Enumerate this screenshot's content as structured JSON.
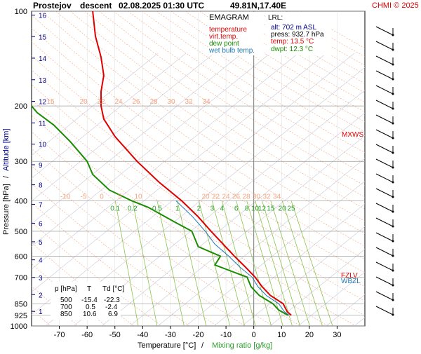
{
  "header": {
    "station": "Prostejov",
    "mode": "descent",
    "datetime": "02.08.2025 01:30 UTC",
    "coords": "49.81N,17.40E",
    "copyright": "CHMI © 2025"
  },
  "legend": {
    "title": "EMAGRAM",
    "items": [
      {
        "label": "temperature",
        "color": "#e00000"
      },
      {
        "label": "virt.temp.",
        "color": "#e00000"
      },
      {
        "label": "dew point",
        "color": "#1a8c00"
      },
      {
        "label": "wet bulb temp.",
        "color": "#1f77b4"
      }
    ]
  },
  "lrl": {
    "title": "LRL:",
    "alt": "alt: 702 m ASL",
    "press": "press: 932.7 hPa",
    "temp": "temp: 13.5 °C",
    "dwpt": "dwpt: 12.3 °C"
  },
  "table": {
    "headers": [
      "p [hPa]",
      "T",
      "Td [°C]"
    ],
    "rows": [
      [
        "500",
        "-15.4",
        "-22.3"
      ],
      [
        "700",
        "0.5",
        "-2.4"
      ],
      [
        "850",
        "10.6",
        "6.9"
      ]
    ]
  },
  "levels": {
    "mxws": "MXWS",
    "fzlv": "FZLV",
    "wbzl": "WBZL"
  },
  "axes": {
    "ylabel_pressure": "Pressure [hPa]",
    "ylabel_sep": "/",
    "ylabel_altitude": "Altitude [km]",
    "xlabel_temp": "Temperature [°C]",
    "xlabel_sep": "/",
    "xlabel_mr": "Mixing ratio [g/kg]",
    "pressure_ticks": [
      100,
      200,
      300,
      400,
      500,
      600,
      700,
      850,
      925,
      1000
    ],
    "temp_ticks": [
      -70,
      -60,
      -50,
      -40,
      -30,
      -20,
      -10,
      0,
      10,
      20,
      30
    ],
    "altitude_ticks": [
      1,
      2,
      3,
      4,
      5,
      6,
      7,
      8,
      9,
      10,
      11,
      12,
      13,
      14,
      15,
      16
    ],
    "mixing_ratio_labels": [
      "0.1",
      "0.2",
      "0.5",
      "1",
      "2",
      "3",
      "4",
      "6",
      "8",
      "10",
      "12",
      "15",
      "20",
      "25"
    ],
    "theta_labels_upper": [
      "15",
      "20",
      "22",
      "24",
      "26",
      "28",
      "30",
      "32",
      "34"
    ],
    "theta_labels_lower": [
      "-10",
      "-5",
      "0",
      "5",
      "10",
      "20",
      "22",
      "24",
      "26",
      "28",
      "30",
      "32",
      "34"
    ]
  },
  "chart_data": {
    "type": "line",
    "title": "",
    "xlim": [
      -80,
      40
    ],
    "ylim": [
      100,
      1000
    ],
    "y_scale": "log",
    "series": [
      {
        "name": "temperature",
        "color": "#e00000",
        "points": [
          [
            13.5,
            925
          ],
          [
            12,
            900
          ],
          [
            10.6,
            850
          ],
          [
            6,
            800
          ],
          [
            3,
            750
          ],
          [
            0.5,
            700
          ],
          [
            -3,
            650
          ],
          [
            -7,
            600
          ],
          [
            -11,
            550
          ],
          [
            -15.4,
            500
          ],
          [
            -20,
            450
          ],
          [
            -26,
            400
          ],
          [
            -34,
            350
          ],
          [
            -42,
            300
          ],
          [
            -50,
            250
          ],
          [
            -54,
            220
          ],
          [
            -55,
            200
          ],
          [
            -55,
            180
          ],
          [
            -54,
            160
          ],
          [
            -55,
            140
          ],
          [
            -57,
            120
          ],
          [
            -58,
            100
          ]
        ]
      },
      {
        "name": "dew point",
        "color": "#1a8c00",
        "points": [
          [
            12.3,
            925
          ],
          [
            9,
            890
          ],
          [
            6.9,
            850
          ],
          [
            2,
            800
          ],
          [
            -1,
            750
          ],
          [
            -2.4,
            700
          ],
          [
            -10,
            660
          ],
          [
            -14,
            640
          ],
          [
            -12,
            600
          ],
          [
            -20,
            560
          ],
          [
            -22.3,
            500
          ],
          [
            -28,
            470
          ],
          [
            -38,
            420
          ],
          [
            -44,
            400
          ],
          [
            -52,
            370
          ],
          [
            -58,
            330
          ],
          [
            -60,
            300
          ],
          [
            -66,
            260
          ],
          [
            -72,
            230
          ],
          [
            -78,
            210
          ],
          [
            -80,
            200
          ]
        ]
      },
      {
        "name": "wet bulb temp.",
        "color": "#1f77b4",
        "points": [
          [
            12.7,
            925
          ],
          [
            11,
            900
          ],
          [
            9,
            850
          ],
          [
            4.5,
            800
          ],
          [
            1.5,
            750
          ],
          [
            -0.6,
            700
          ],
          [
            -5,
            650
          ],
          [
            -9,
            600
          ],
          [
            -14,
            550
          ],
          [
            -17.5,
            500
          ],
          [
            -22,
            450
          ],
          [
            -28,
            400
          ]
        ]
      }
    ]
  }
}
